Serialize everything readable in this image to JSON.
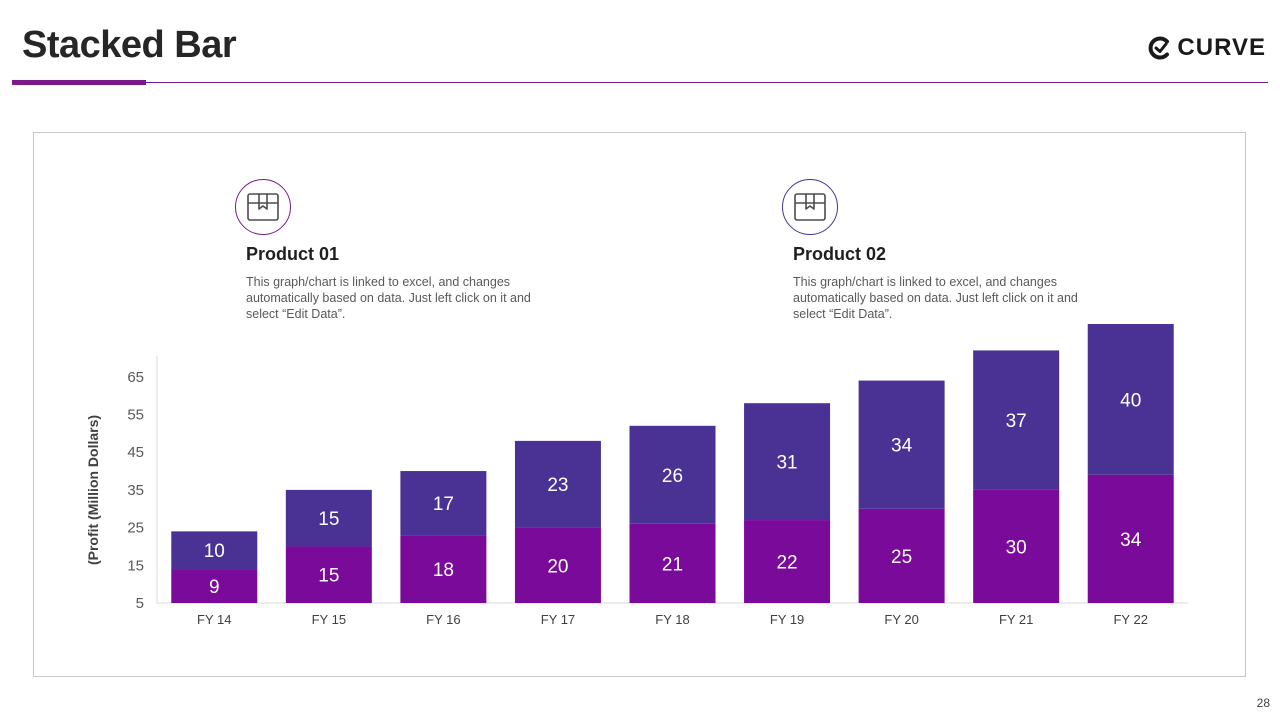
{
  "slide": {
    "title": "Stacked Bar",
    "logo_text": "CURVE",
    "page_number": "28"
  },
  "products": [
    {
      "title": "Product 01",
      "description": "This graph/chart is linked to excel, and changes automatically based on data. Just left click on it and select “Edit Data”.",
      "icon": "package-box-icon",
      "color": "#7a1a8c"
    },
    {
      "title": "Product 02",
      "description": "This graph/chart is linked to excel, and changes automatically based on data. Just left click on it and select “Edit Data”.",
      "icon": "package-box-icon",
      "color": "#483291"
    }
  ],
  "chart_data": {
    "type": "bar",
    "stacked": true,
    "categories": [
      "FY 14",
      "FY 15",
      "FY 16",
      "FY 17",
      "FY 18",
      "FY 19",
      "FY 20",
      "FY 21",
      "FY 22"
    ],
    "series": [
      {
        "values": [
          9,
          15,
          18,
          20,
          21,
          22,
          25,
          30,
          34
        ],
        "color": "#7a0a9a"
      },
      {
        "values": [
          10,
          15,
          17,
          23,
          26,
          31,
          34,
          37,
          40
        ],
        "color": "#4a3294"
      }
    ],
    "ylabel": "(Profit  (Million Dollars)",
    "yticks": [
      5,
      15,
      25,
      35,
      45,
      55,
      65
    ],
    "ylim": [
      5,
      70
    ],
    "grid": false,
    "legend": "none"
  }
}
